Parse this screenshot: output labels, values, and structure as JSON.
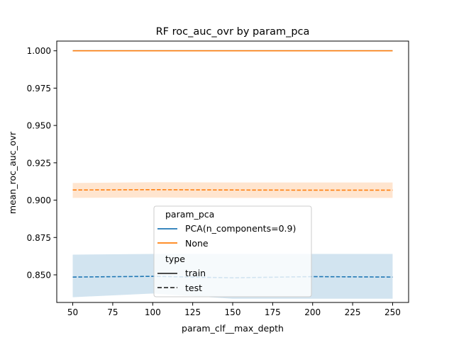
{
  "chart_data": {
    "type": "line",
    "title": "RF roc_auc_ovr by param_pca",
    "xlabel": "param_clf__max_depth",
    "ylabel": "mean_roc_auc_ovr",
    "xlim": [
      40,
      260
    ],
    "ylim": [
      0.8315,
      1.0065
    ],
    "x_ticks": [
      50,
      75,
      100,
      125,
      150,
      175,
      200,
      225,
      250
    ],
    "x_tick_labels": [
      "50",
      "75",
      "100",
      "125",
      "150",
      "175",
      "200",
      "225",
      "250"
    ],
    "y_ticks": [
      0.85,
      0.875,
      0.9,
      0.925,
      0.95,
      0.975,
      1.0
    ],
    "y_tick_labels": [
      "0.850",
      "0.875",
      "0.900",
      "0.925",
      "0.950",
      "0.975",
      "1.000"
    ],
    "grid": false,
    "legend": {
      "placement": "lower-center",
      "hue_title": "param_pca",
      "hue_entries": [
        {
          "label": "PCA(n_components=0.9)",
          "color": "#1f77b4"
        },
        {
          "label": "None",
          "color": "#ff7f0e"
        }
      ],
      "style_title": "type",
      "style_entries": [
        {
          "label": "train",
          "dash": "solid"
        },
        {
          "label": "test",
          "dash": "dashed"
        }
      ]
    },
    "series": [
      {
        "param_pca": "PCA(n_components=0.9)",
        "type": "train",
        "color": "#1f77b4",
        "dash": "solid",
        "x": [
          50,
          100,
          150,
          200,
          250
        ],
        "y": [
          1.0,
          1.0,
          1.0,
          1.0,
          1.0
        ]
      },
      {
        "param_pca": "None",
        "type": "train",
        "color": "#ff7f0e",
        "dash": "solid",
        "x": [
          50,
          100,
          150,
          200,
          250
        ],
        "y": [
          1.0,
          1.0,
          1.0,
          1.0,
          1.0
        ]
      },
      {
        "param_pca": "PCA(n_components=0.9)",
        "type": "test",
        "color": "#1f77b4",
        "dash": "dashed",
        "x": [
          50,
          100,
          150,
          200,
          250
        ],
        "y": [
          0.8485,
          0.849,
          0.848,
          0.8488,
          0.8485
        ],
        "ci_low": [
          0.835,
          0.8375,
          0.834,
          0.834,
          0.834
        ],
        "ci_high": [
          0.8635,
          0.864,
          0.864,
          0.864,
          0.864
        ]
      },
      {
        "param_pca": "None",
        "type": "test",
        "color": "#ff7f0e",
        "dash": "dashed",
        "x": [
          50,
          100,
          150,
          200,
          250
        ],
        "y": [
          0.9068,
          0.907,
          0.9068,
          0.9067,
          0.9067
        ],
        "ci_low": [
          0.9015,
          0.9018,
          0.9015,
          0.9015,
          0.9015
        ],
        "ci_high": [
          0.9115,
          0.912,
          0.9118,
          0.9118,
          0.9118
        ]
      }
    ]
  }
}
